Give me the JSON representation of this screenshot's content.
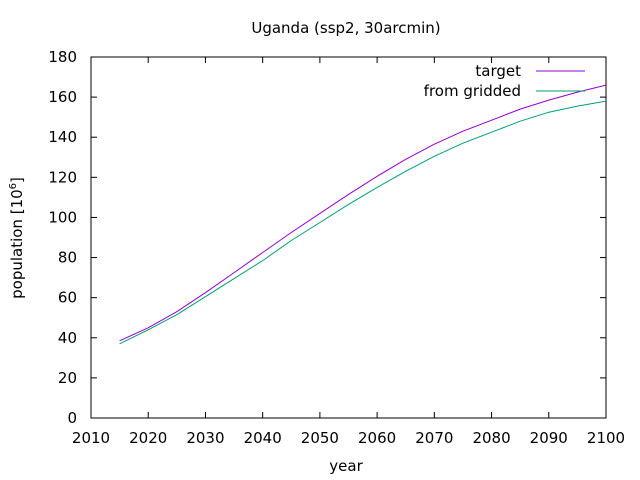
{
  "chart_data": {
    "type": "line",
    "title": "Uganda (ssp2, 30arcmin)",
    "xlabel": "year",
    "ylabel_main": "population [10",
    "ylabel_sup": "6",
    "ylabel_close": "]",
    "xlim": [
      2010,
      2100
    ],
    "ylim": [
      0,
      180
    ],
    "xticks": [
      "2010",
      "2020",
      "2030",
      "2040",
      "2050",
      "2060",
      "2070",
      "2080",
      "2090",
      "2100"
    ],
    "yticks": [
      "0",
      "20",
      "40",
      "60",
      "80",
      "100",
      "120",
      "140",
      "160",
      "180"
    ],
    "grid": false,
    "legend_position": "top-right",
    "x": [
      2015,
      2020,
      2025,
      2030,
      2035,
      2040,
      2045,
      2050,
      2055,
      2060,
      2065,
      2070,
      2075,
      2080,
      2085,
      2090,
      2095,
      2100
    ],
    "series": [
      {
        "name": "target",
        "color": "#9400d3",
        "values": [
          38.5,
          45.0,
          53.0,
          62.5,
          72.5,
          82.5,
          92.5,
          102.0,
          111.5,
          120.5,
          129.0,
          136.5,
          143.0,
          148.5,
          154.0,
          158.5,
          162.5,
          166.0
        ]
      },
      {
        "name": "from gridded",
        "color": "#009e73",
        "values": [
          37.0,
          44.0,
          51.5,
          60.5,
          69.5,
          78.5,
          88.5,
          97.5,
          106.5,
          115.0,
          123.0,
          130.5,
          137.0,
          142.5,
          148.0,
          152.5,
          155.5,
          158.0
        ]
      }
    ]
  }
}
